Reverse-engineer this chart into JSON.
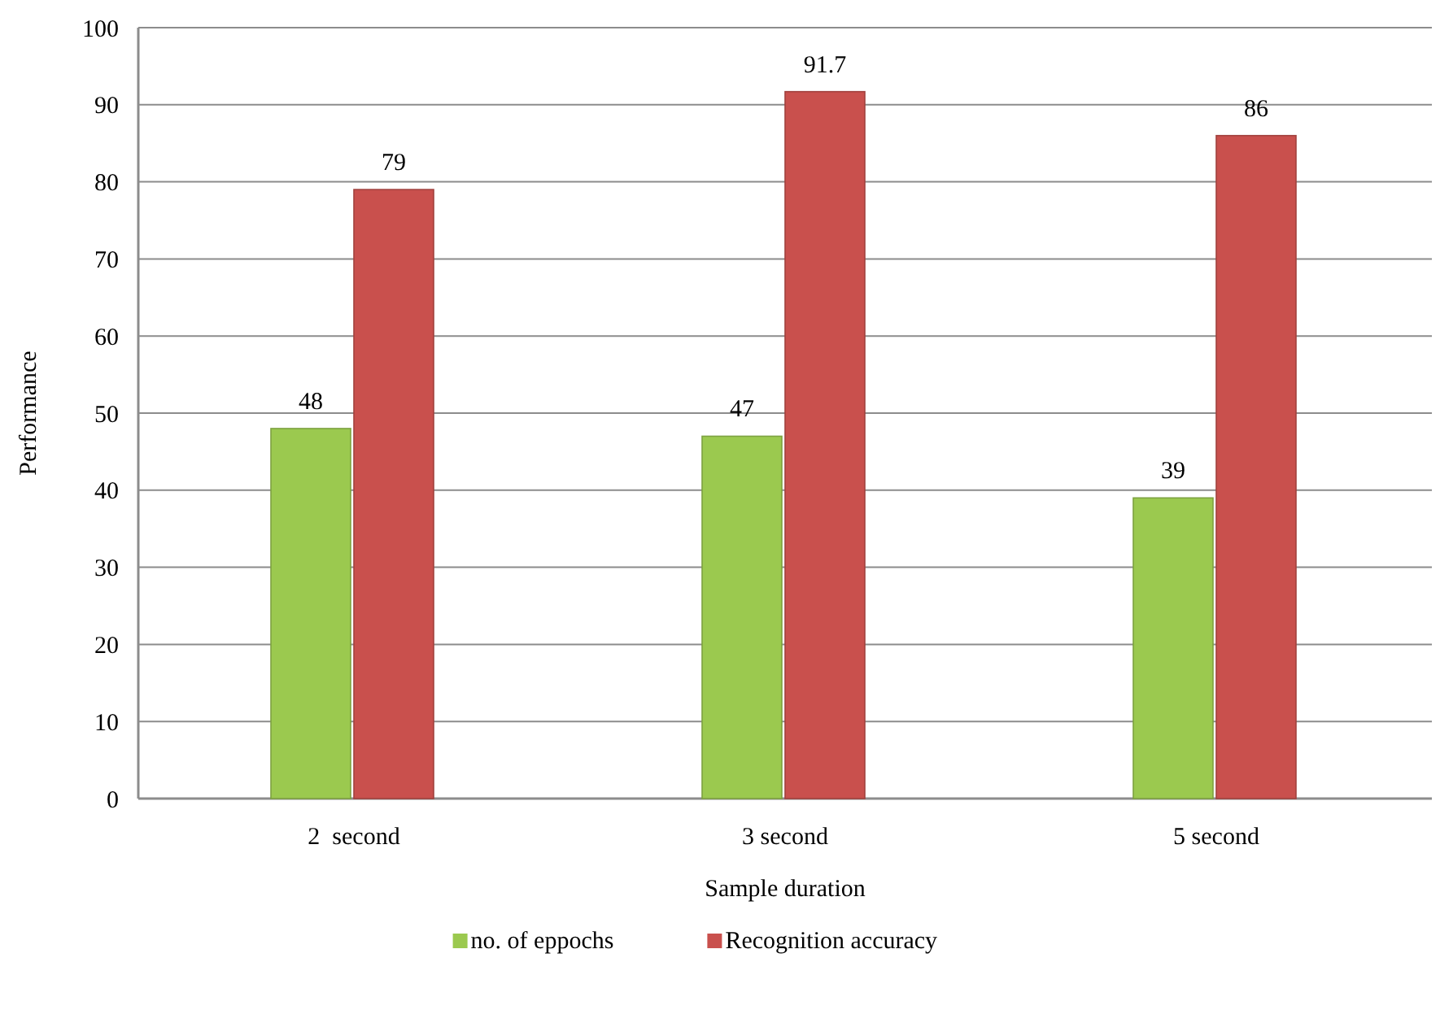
{
  "chart_data": {
    "type": "bar",
    "xlabel": "Sample duration",
    "ylabel": "Performance",
    "categories": [
      "2  second",
      "3 second",
      "5 second"
    ],
    "series": [
      {
        "name": "no. of eppochs",
        "color": "#9bc94f",
        "values": [
          48,
          47,
          39
        ]
      },
      {
        "name": "Recognition accuracy",
        "color": "#c9504d",
        "values": [
          79,
          91.7,
          86
        ]
      }
    ],
    "ylim": [
      0,
      100
    ],
    "yticks": [
      0,
      10,
      20,
      30,
      40,
      50,
      60,
      70,
      80,
      90,
      100
    ],
    "grid": "y",
    "legend": "bottom",
    "data_labels": true
  }
}
